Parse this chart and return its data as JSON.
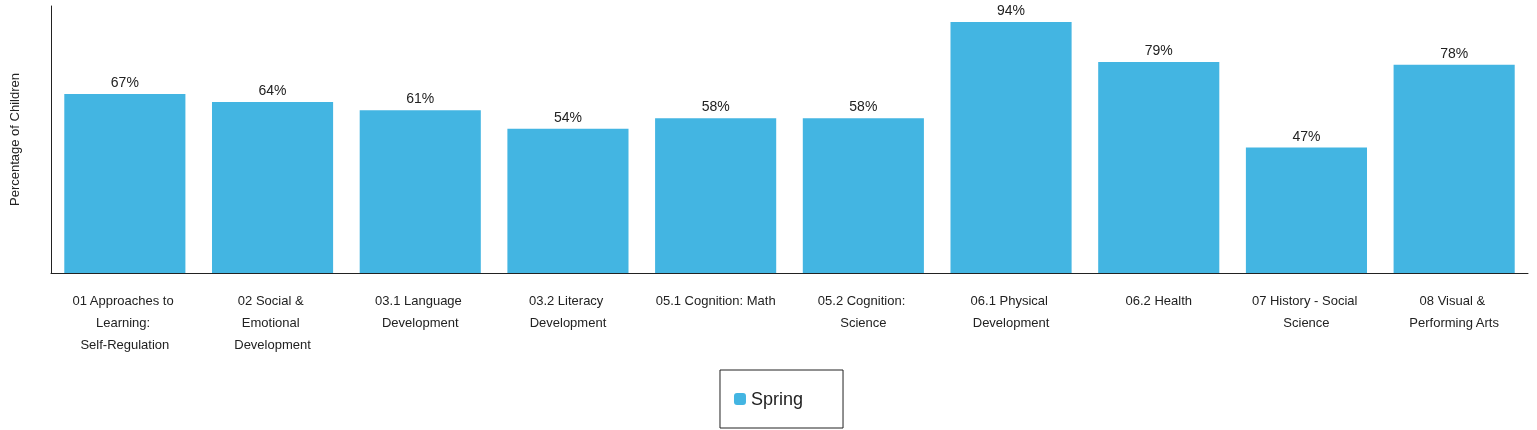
{
  "chart_data": {
    "type": "bar",
    "ylabel": "Percentage of Children",
    "categories": [
      "01 Approaches to Learning: Self-Regulation",
      "02 Social & Emotional Development",
      "03.1 Language Development",
      "03.2 Literacy Development",
      "05.1 Cognition: Math",
      "05.2 Cognition: Science",
      "06.1 Physical Development",
      "06.2 Health",
      "07 History - Social Science",
      "08 Visual & Performing Arts"
    ],
    "series": [
      {
        "name": "Spring",
        "color": "#43b5e2",
        "values": [
          67,
          64,
          61,
          54,
          58,
          58,
          94,
          79,
          47,
          78
        ],
        "value_labels": [
          "67%",
          "64%",
          "61%",
          "54%",
          "58%",
          "58%",
          "94%",
          "79%",
          "47%",
          "78%"
        ]
      }
    ],
    "legend": "bottom",
    "grid": false
  }
}
